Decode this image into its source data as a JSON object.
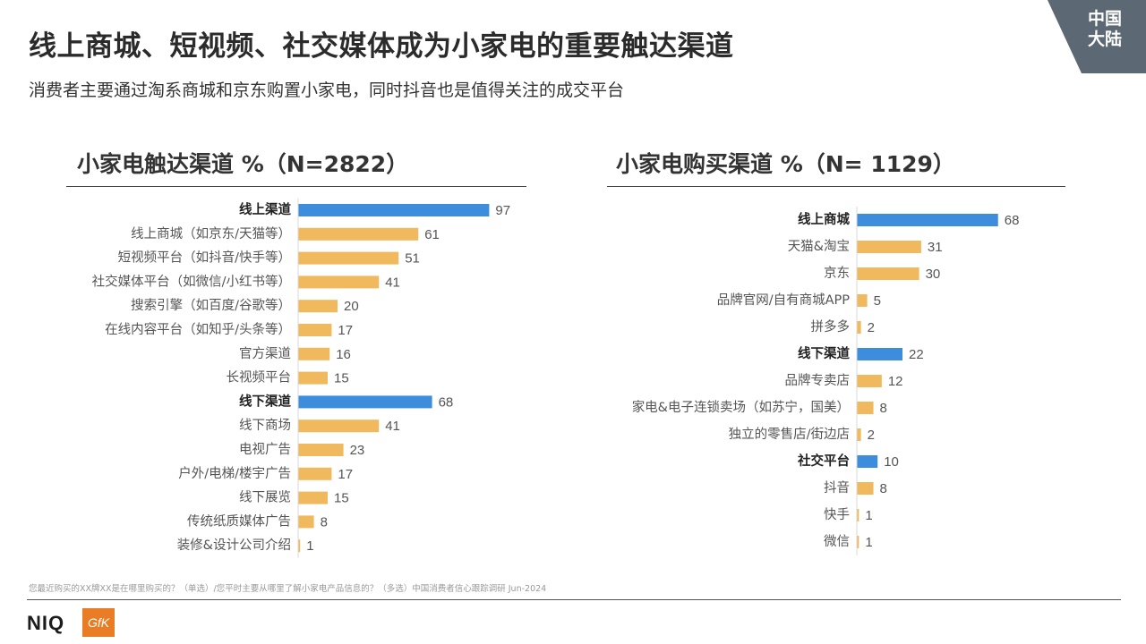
{
  "page": {
    "title": "线上商城、短视频、社交媒体成为小家电的重要触达渠道",
    "subtitle": "消费者主要通过淘系商城和京东购置小家电，同时抖音也是值得关注的成交平台",
    "region_tag": "中国\n大陆",
    "footnote": "您最近购买的XX牌XX是在哪里购买的？（单选）/您平时主要从哪里了解小家电产品信息的？（多选）中国消费者信心跟踪调研 Jun-2024",
    "logos": {
      "niq": "NIQ",
      "gfk": "GfK"
    }
  },
  "colors": {
    "group_bar": "#3e8ddd",
    "item_bar": "#f0b95e",
    "corner_tab": "#5c6873"
  },
  "chart_data": [
    {
      "type": "bar",
      "orientation": "horizontal",
      "title": "小家电触达渠道 %（N=2822）",
      "xlim": [
        0,
        100
      ],
      "categories": [
        "线上渠道",
        "线上商城（如京东/天猫等）",
        "短视频平台（如抖音/快手等）",
        "社交媒体平台（如微信/小红书等）",
        "搜索引擎（如百度/谷歌等）",
        "在线内容平台（如知乎/头条等）",
        "官方渠道",
        "长视频平台",
        "线下渠道",
        "线下商场",
        "电视广告",
        "户外/电梯/楼宇广告",
        "线下展览",
        "传统纸质媒体广告",
        "装修&设计公司介绍"
      ],
      "values": [
        97,
        61,
        51,
        41,
        20,
        17,
        16,
        15,
        68,
        41,
        23,
        17,
        15,
        8,
        1
      ],
      "group_headers": [
        "线上渠道",
        "线下渠道"
      ]
    },
    {
      "type": "bar",
      "orientation": "horizontal",
      "title": "小家电购买渠道 %（N= 1129）",
      "xlim": [
        0,
        100
      ],
      "categories": [
        "线上商城",
        "天猫&淘宝",
        "京东",
        "品牌官网/自有商城APP",
        "拼多多",
        "线下渠道",
        "品牌专卖店",
        "家电&电子连锁卖场（如苏宁，国美）",
        "独立的零售店/街边店",
        "社交平台",
        "抖音",
        "快手",
        "微信"
      ],
      "values": [
        68,
        31,
        30,
        5,
        2,
        22,
        12,
        8,
        2,
        10,
        8,
        1,
        1
      ],
      "group_headers": [
        "线上商城",
        "线下渠道",
        "社交平台"
      ]
    }
  ]
}
